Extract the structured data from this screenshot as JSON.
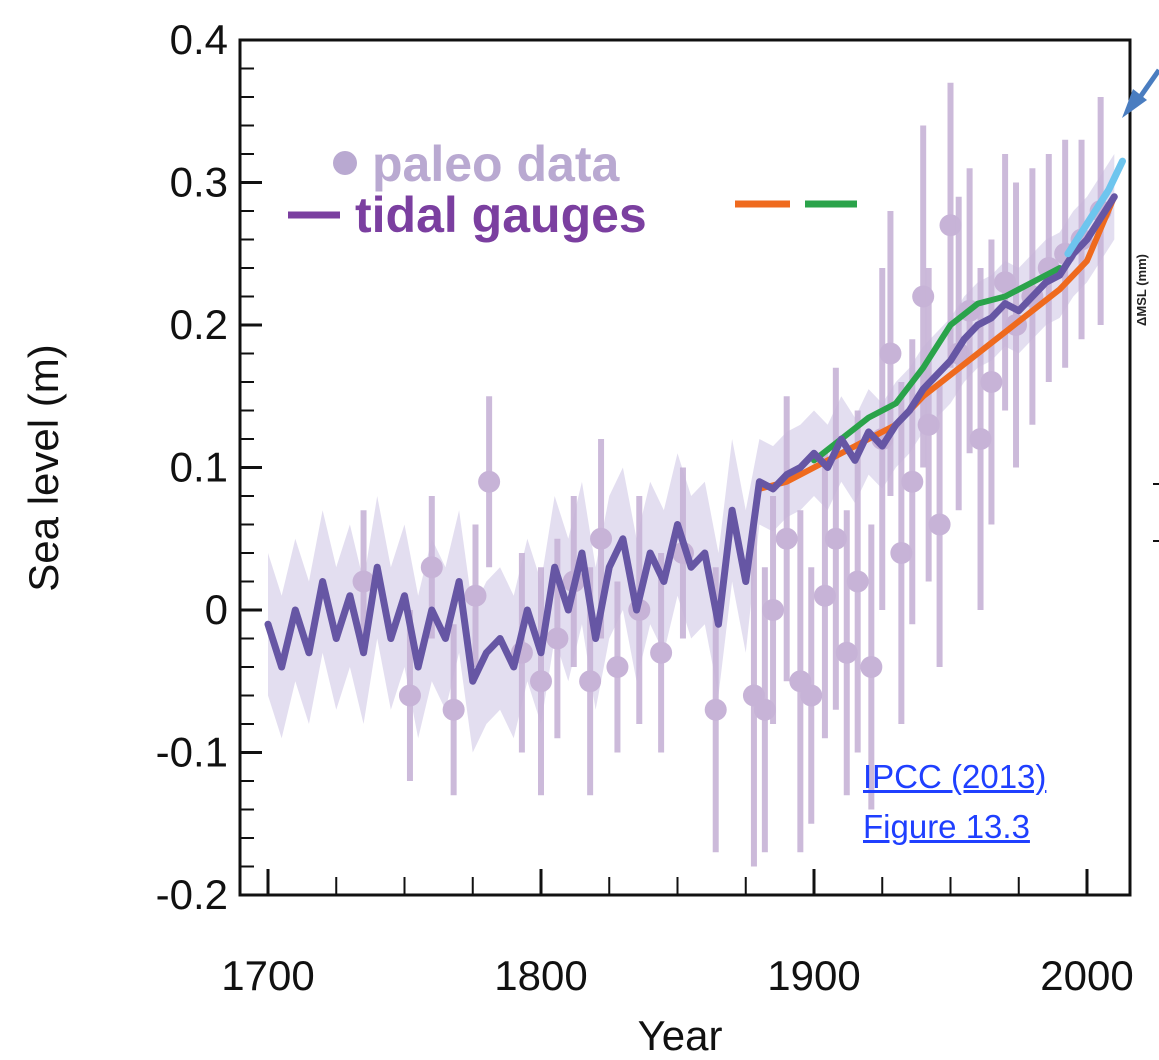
{
  "chart_data": {
    "type": "line",
    "xlabel": "Year",
    "ylabel": "Sea level (m)",
    "xlim": [
      1700,
      2015
    ],
    "ylim": [
      -0.2,
      0.4
    ],
    "x_ticks": [
      1700,
      1800,
      1900,
      2000
    ],
    "x_tick_labels": [
      "1700",
      "1800",
      "1900",
      "2000"
    ],
    "y_ticks": [
      -0.2,
      -0.1,
      0,
      0.1,
      0.2,
      0.3,
      0.4
    ],
    "y_tick_labels": [
      "-0.2",
      "-0.1",
      "0",
      "0.1",
      "0.2",
      "0.3",
      "0.4"
    ],
    "grid": false,
    "legend": {
      "placement": "top-left",
      "entries": [
        {
          "marker": "●",
          "label": "paleo data",
          "color": "#b9a9d1"
        },
        {
          "marker": "–",
          "label": "tidal gauges",
          "color": "#7b3fa0"
        }
      ]
    },
    "side_label": "ΔMSL (mm)",
    "citation_lines": [
      "IPCC (2013)",
      "Figure 13.3"
    ],
    "colors": {
      "paleo": "#c7b3d7",
      "paleo_band": "#dcd6ec",
      "tidal_gauges": "#6656a4",
      "orange": "#ef6a1e",
      "green": "#2aa34a",
      "light_blue": "#6ec5ee",
      "axis": "#111111"
    },
    "series": [
      {
        "key": "tidal_gauges",
        "x": [
          1700,
          1705,
          1710,
          1715,
          1720,
          1725,
          1730,
          1735,
          1740,
          1745,
          1750,
          1755,
          1760,
          1765,
          1770,
          1775,
          1780,
          1785,
          1790,
          1795,
          1800,
          1805,
          1810,
          1815,
          1820,
          1825,
          1830,
          1835,
          1840,
          1845,
          1850,
          1855,
          1860,
          1865,
          1870,
          1875,
          1880,
          1885,
          1890,
          1895,
          1900,
          1905,
          1910,
          1915,
          1920,
          1925,
          1930,
          1935,
          1940,
          1945,
          1950,
          1955,
          1960,
          1965,
          1970,
          1975,
          1980,
          1985,
          1990,
          1995,
          2000,
          2005,
          2010
        ],
        "y": [
          -0.01,
          -0.04,
          0.0,
          -0.03,
          0.02,
          -0.02,
          0.01,
          -0.03,
          0.03,
          -0.02,
          0.01,
          -0.04,
          0.0,
          -0.02,
          0.02,
          -0.05,
          -0.03,
          -0.02,
          -0.04,
          0.0,
          -0.03,
          0.03,
          0.0,
          0.04,
          -0.02,
          0.03,
          0.05,
          0.0,
          0.04,
          0.02,
          0.06,
          0.03,
          0.04,
          -0.01,
          0.07,
          0.02,
          0.09,
          0.085,
          0.095,
          0.1,
          0.11,
          0.1,
          0.12,
          0.105,
          0.125,
          0.115,
          0.13,
          0.14,
          0.155,
          0.165,
          0.175,
          0.19,
          0.2,
          0.205,
          0.215,
          0.21,
          0.22,
          0.23,
          0.235,
          0.25,
          0.26,
          0.275,
          0.29
        ]
      },
      {
        "key": "orange",
        "x": [
          1880,
          1890,
          1900,
          1910,
          1920,
          1930,
          1940,
          1950,
          1960,
          1970,
          1980,
          1990,
          2000,
          2010
        ],
        "y": [
          0.085,
          0.09,
          0.1,
          0.11,
          0.12,
          0.13,
          0.15,
          0.165,
          0.18,
          0.195,
          0.21,
          0.225,
          0.245,
          0.29
        ]
      },
      {
        "key": "green",
        "x": [
          1900,
          1910,
          1920,
          1930,
          1940,
          1950,
          1960,
          1970,
          1980,
          1990
        ],
        "y": [
          0.105,
          0.12,
          0.135,
          0.145,
          0.17,
          0.2,
          0.215,
          0.22,
          0.23,
          0.24
        ]
      },
      {
        "key": "light_blue",
        "x": [
          1993,
          1998,
          2003,
          2008,
          2013
        ],
        "y": [
          0.25,
          0.265,
          0.28,
          0.295,
          0.315
        ]
      }
    ],
    "paleo_points": {
      "x": [
        1735,
        1752,
        1760,
        1768,
        1776,
        1781,
        1793,
        1800,
        1806,
        1812,
        1818,
        1822,
        1828,
        1836,
        1844,
        1852,
        1864,
        1878,
        1882,
        1885,
        1890,
        1895,
        1899,
        1904,
        1908,
        1912,
        1916,
        1921,
        1925,
        1928,
        1932,
        1936,
        1940,
        1942,
        1946,
        1950,
        1953,
        1957,
        1961,
        1965,
        1970,
        1974,
        1980,
        1986,
        1992,
        1998,
        2005
      ],
      "y": [
        0.02,
        -0.06,
        0.03,
        -0.07,
        0.01,
        0.09,
        -0.03,
        -0.05,
        -0.02,
        0.02,
        -0.05,
        0.05,
        -0.04,
        0.0,
        -0.03,
        0.04,
        -0.07,
        -0.06,
        -0.07,
        0.0,
        0.05,
        -0.05,
        -0.06,
        0.01,
        0.05,
        -0.03,
        0.02,
        -0.04,
        0.12,
        0.18,
        0.04,
        0.09,
        0.22,
        0.13,
        0.06,
        0.27,
        0.18,
        0.21,
        0.12,
        0.16,
        0.23,
        0.2,
        0.22,
        0.24,
        0.25,
        0.26,
        0.28
      ],
      "err": [
        0.05,
        0.06,
        0.05,
        0.06,
        0.05,
        0.06,
        0.07,
        0.08,
        0.07,
        0.06,
        0.08,
        0.07,
        0.06,
        0.08,
        0.07,
        0.06,
        0.1,
        0.12,
        0.1,
        0.08,
        0.1,
        0.12,
        0.09,
        0.1,
        0.12,
        0.1,
        0.12,
        0.1,
        0.12,
        0.1,
        0.12,
        0.1,
        0.12,
        0.11,
        0.1,
        0.1,
        0.11,
        0.1,
        0.12,
        0.1,
        0.09,
        0.1,
        0.09,
        0.08,
        0.08,
        0.07,
        0.08
      ]
    }
  }
}
